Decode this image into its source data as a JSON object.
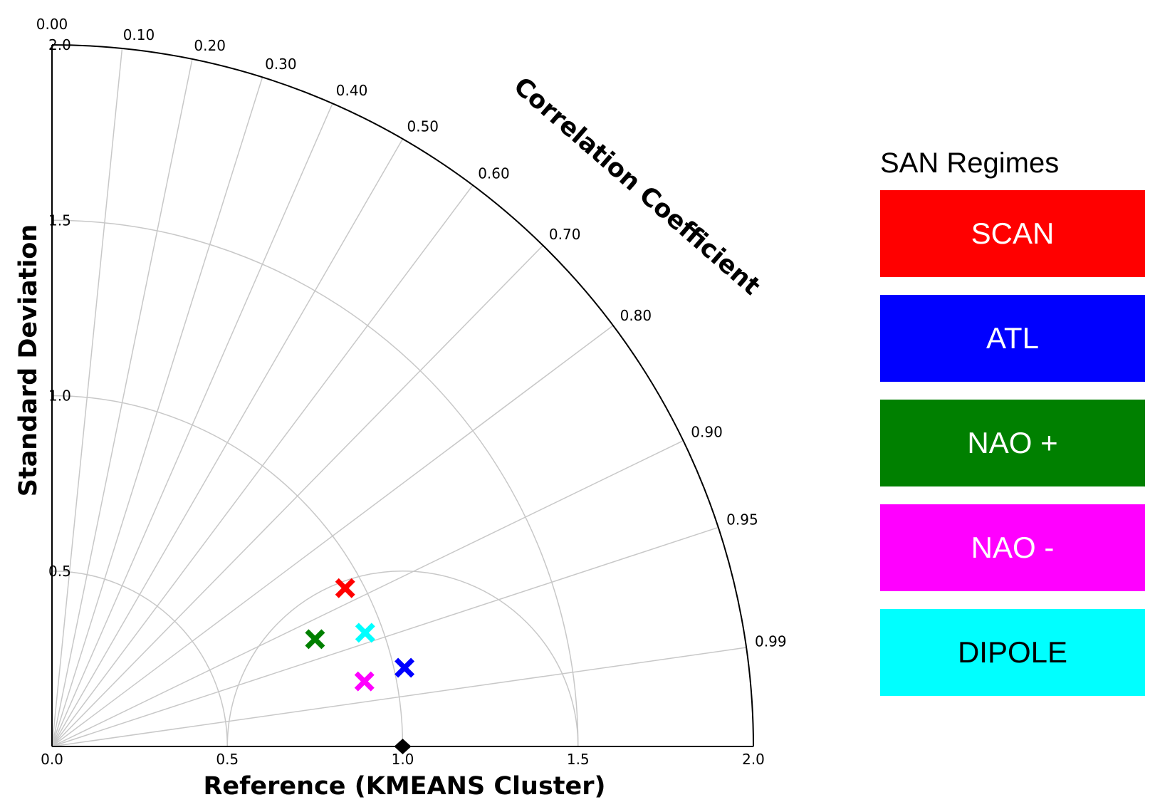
{
  "chart_data": {
    "type": "taylor-diagram",
    "xlabel": "Reference (KMEANS Cluster)",
    "ylabel": "Standard Deviation",
    "arc_label": "Correlation Coefficient",
    "std_range": [
      0,
      2.0
    ],
    "std_ticks": [
      "0.0",
      "0.5",
      "1.0",
      "1.5",
      "2.0"
    ],
    "y_ticks": [
      "0.5",
      "1.0",
      "1.5",
      "2.0"
    ],
    "correlation_ticks": [
      "0.00",
      "0.10",
      "0.20",
      "0.30",
      "0.40",
      "0.50",
      "0.60",
      "0.70",
      "0.80",
      "0.90",
      "0.95",
      "0.99"
    ],
    "grid": true,
    "reference": {
      "std": 1.0,
      "correlation": 1.0,
      "color": "#000000"
    },
    "points": [
      {
        "name": "SCAN",
        "std": 0.95,
        "correlation": 0.88,
        "color": "#ff0000"
      },
      {
        "name": "ATL",
        "std": 1.03,
        "correlation": 0.976,
        "color": "#0000ff"
      },
      {
        "name": "NAO +",
        "std": 0.81,
        "correlation": 0.926,
        "color": "#008000"
      },
      {
        "name": "NAO -",
        "std": 0.91,
        "correlation": 0.979,
        "color": "#ff00ff"
      },
      {
        "name": "DIPOLE",
        "std": 0.95,
        "correlation": 0.94,
        "color": "#00ffff"
      }
    ]
  },
  "legend": {
    "title": "SAN Regimes",
    "items": [
      {
        "label": "SCAN",
        "color": "#ff0000",
        "text_color": "#ffffff"
      },
      {
        "label": "ATL",
        "color": "#0000ff",
        "text_color": "#ffffff"
      },
      {
        "label": "NAO +",
        "color": "#008000",
        "text_color": "#ffffff"
      },
      {
        "label": "NAO -",
        "color": "#ff00ff",
        "text_color": "#ffffff"
      },
      {
        "label": "DIPOLE",
        "color": "#00ffff",
        "text_color": "#000000"
      }
    ]
  }
}
